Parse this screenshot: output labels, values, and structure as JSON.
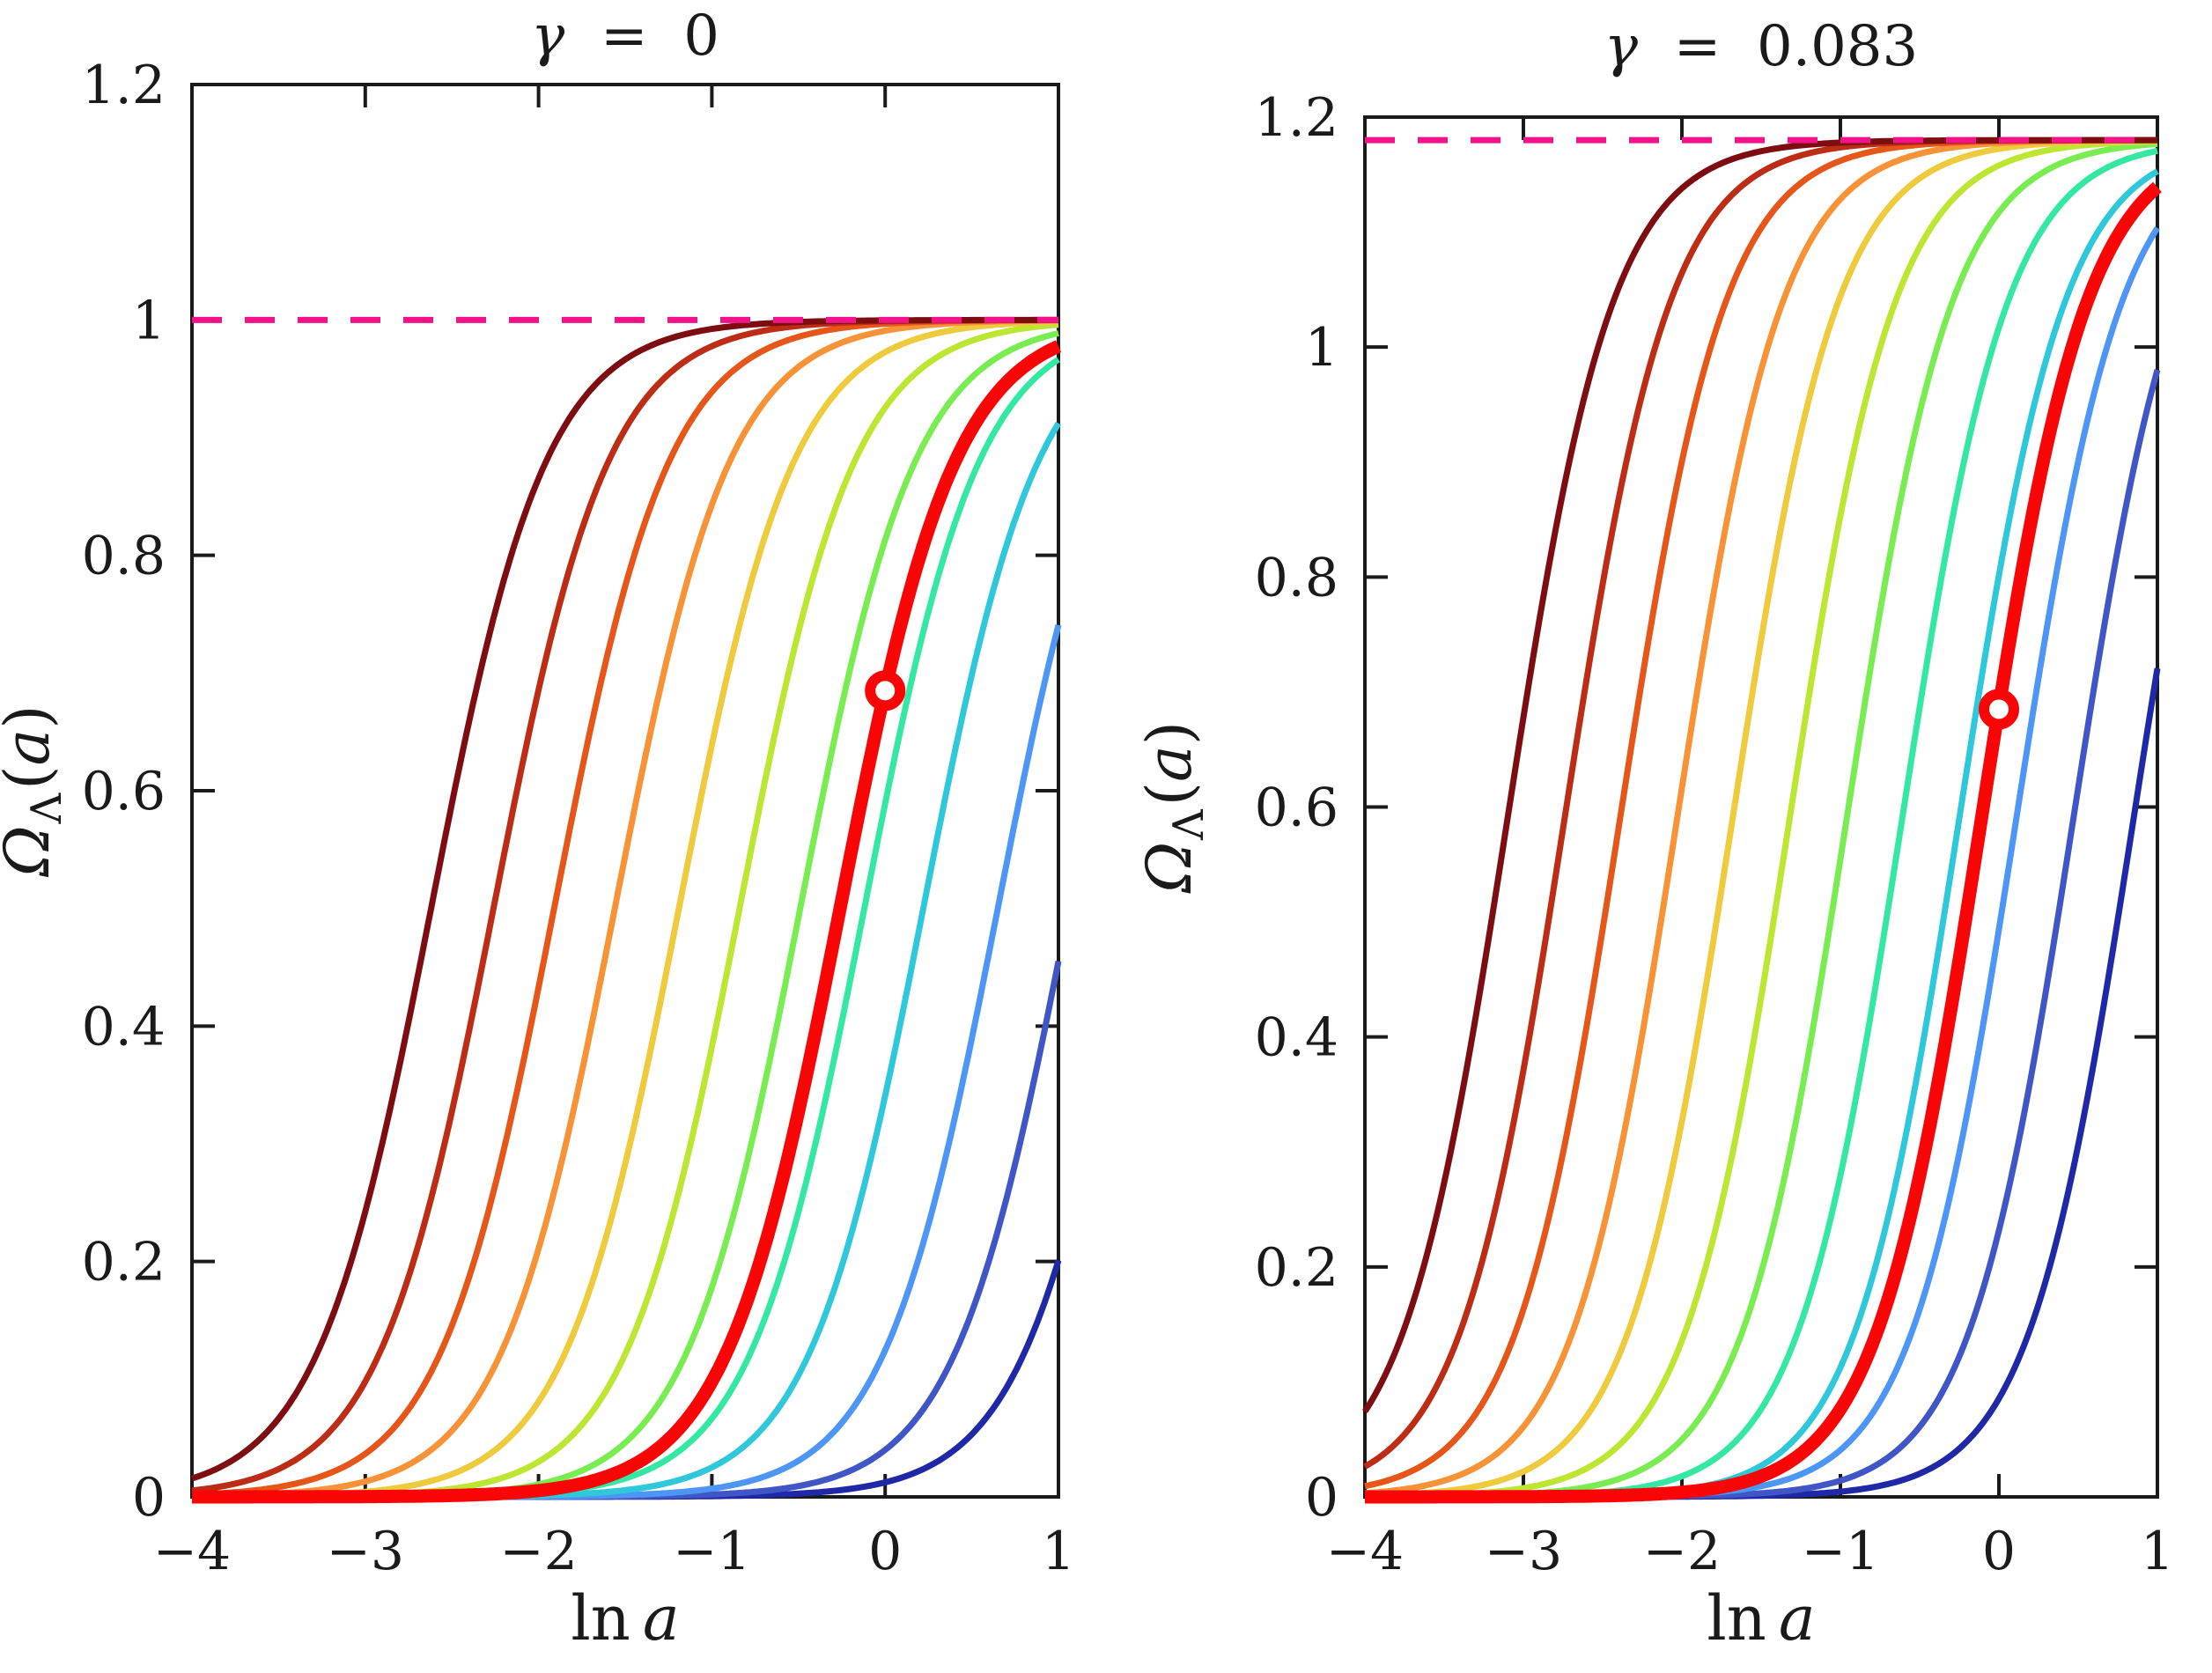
{
  "figure": {
    "background": "#ffffff",
    "axis_color": "#1a1a1a",
    "text_color": "#1a1a1a"
  },
  "chart_data": {
    "type": "line",
    "description": "Evolution of dark-energy density parameter vs e-folds for a family of cosmologies (jet-colored curves), thick red fiducial curve with open marker at present day (ln a = 0, value 0.685), dashed pink line marking the late-time attractor value.",
    "panels": [
      {
        "title": {
          "symbol": "γ",
          "rest": "  =  0"
        },
        "xlabel": {
          "upright": "ln",
          "var": "a"
        },
        "ylabel": {
          "main": "Ω",
          "sub": "Λ",
          "open": "(",
          "var": "a",
          "close": ")"
        },
        "xlim": [
          -4,
          1
        ],
        "ylim": [
          0,
          1.2
        ],
        "xticks": [
          -4,
          -3,
          -2,
          -1,
          0,
          1
        ],
        "xtick_labels": [
          "−4",
          "−3",
          "−2",
          "−1",
          "0",
          "1"
        ],
        "yticks": [
          0,
          0.2,
          0.4,
          0.6,
          0.8,
          1,
          1.2
        ],
        "ytick_labels": [
          "0",
          "0.2",
          "0.4",
          "0.6",
          "0.8",
          "1",
          "1.2"
        ],
        "grid": false,
        "plateau": 1.0,
        "slope": 3,
        "dashed_line": {
          "y": 1.0,
          "color": "#f2128a"
        },
        "fiducial": {
          "name": "fiducial-red",
          "color": "#fa0505",
          "x0": -0.26,
          "marker": {
            "x": 0,
            "y": 0.685
          }
        },
        "curves": [
          {
            "name": "dark-red",
            "color": "#7d0d10",
            "x0": -2.62
          },
          {
            "name": "brick-red",
            "color": "#bd2c14",
            "x0": -2.26
          },
          {
            "name": "orange-red",
            "color": "#e65619",
            "x0": -1.91
          },
          {
            "name": "orange",
            "color": "#f79237",
            "x0": -1.56
          },
          {
            "name": "gold",
            "color": "#eeca3d",
            "x0": -1.19
          },
          {
            "name": "chartreuse",
            "color": "#bce632",
            "x0": -0.84
          },
          {
            "name": "light-green",
            "color": "#79ec52",
            "x0": -0.49
          },
          {
            "name": "spring-green",
            "color": "#34e8a4",
            "x0": -0.12
          },
          {
            "name": "cyan",
            "color": "#2ec8da",
            "x0": 0.22
          },
          {
            "name": "dodger-blue",
            "color": "#4d96f6",
            "x0": 0.65
          },
          {
            "name": "royal-blue",
            "color": "#4156c6",
            "x0": 1.06
          },
          {
            "name": "navy",
            "color": "#1f28a6",
            "x0": 1.46
          }
        ]
      },
      {
        "title": {
          "symbol": "γ",
          "rest": "  =  0.083"
        },
        "xlabel": {
          "upright": "ln",
          "var": "a"
        },
        "ylabel": {
          "main": "Ω",
          "sub": "Λ",
          "open": "(",
          "var": "a",
          "close": ")"
        },
        "xlim": [
          -4,
          1
        ],
        "ylim": [
          0,
          1.2
        ],
        "xticks": [
          -4,
          -3,
          -2,
          -1,
          0,
          1
        ],
        "xtick_labels": [
          "−4",
          "−3",
          "−2",
          "−1",
          "0",
          "1"
        ],
        "yticks": [
          0,
          0.2,
          0.4,
          0.6,
          0.8,
          1,
          1.2
        ],
        "ytick_labels": [
          "0",
          "0.2",
          "0.4",
          "0.6",
          "0.8",
          "1",
          "1.2"
        ],
        "grid": false,
        "plateau": 1.18,
        "slope": 3,
        "dashed_line": {
          "y": 1.18,
          "color": "#f2128a"
        },
        "fiducial": {
          "name": "fiducial-red",
          "color": "#fa0505",
          "x0": -0.11,
          "marker": {
            "x": 0,
            "y": 0.685
          }
        },
        "curves": [
          {
            "name": "dark-red",
            "color": "#7d0d10",
            "x0": -3.1
          },
          {
            "name": "brick-red",
            "color": "#bd2c14",
            "x0": -2.74
          },
          {
            "name": "orange-red",
            "color": "#e65619",
            "x0": -2.39
          },
          {
            "name": "orange",
            "color": "#f79237",
            "x0": -2.03
          },
          {
            "name": "gold",
            "color": "#eeca3d",
            "x0": -1.68
          },
          {
            "name": "chartreuse",
            "color": "#bce632",
            "x0": -1.32
          },
          {
            "name": "light-green",
            "color": "#79ec52",
            "x0": -0.96
          },
          {
            "name": "spring-green",
            "color": "#34e8a4",
            "x0": -0.61
          },
          {
            "name": "cyan",
            "color": "#2ec8da",
            "x0": -0.25
          },
          {
            "name": "dodger-blue",
            "color": "#4d96f6",
            "x0": 0.11
          },
          {
            "name": "royal-blue",
            "color": "#4156c6",
            "x0": 0.47
          },
          {
            "name": "navy",
            "color": "#1f28a6",
            "x0": 0.85
          }
        ]
      }
    ]
  }
}
